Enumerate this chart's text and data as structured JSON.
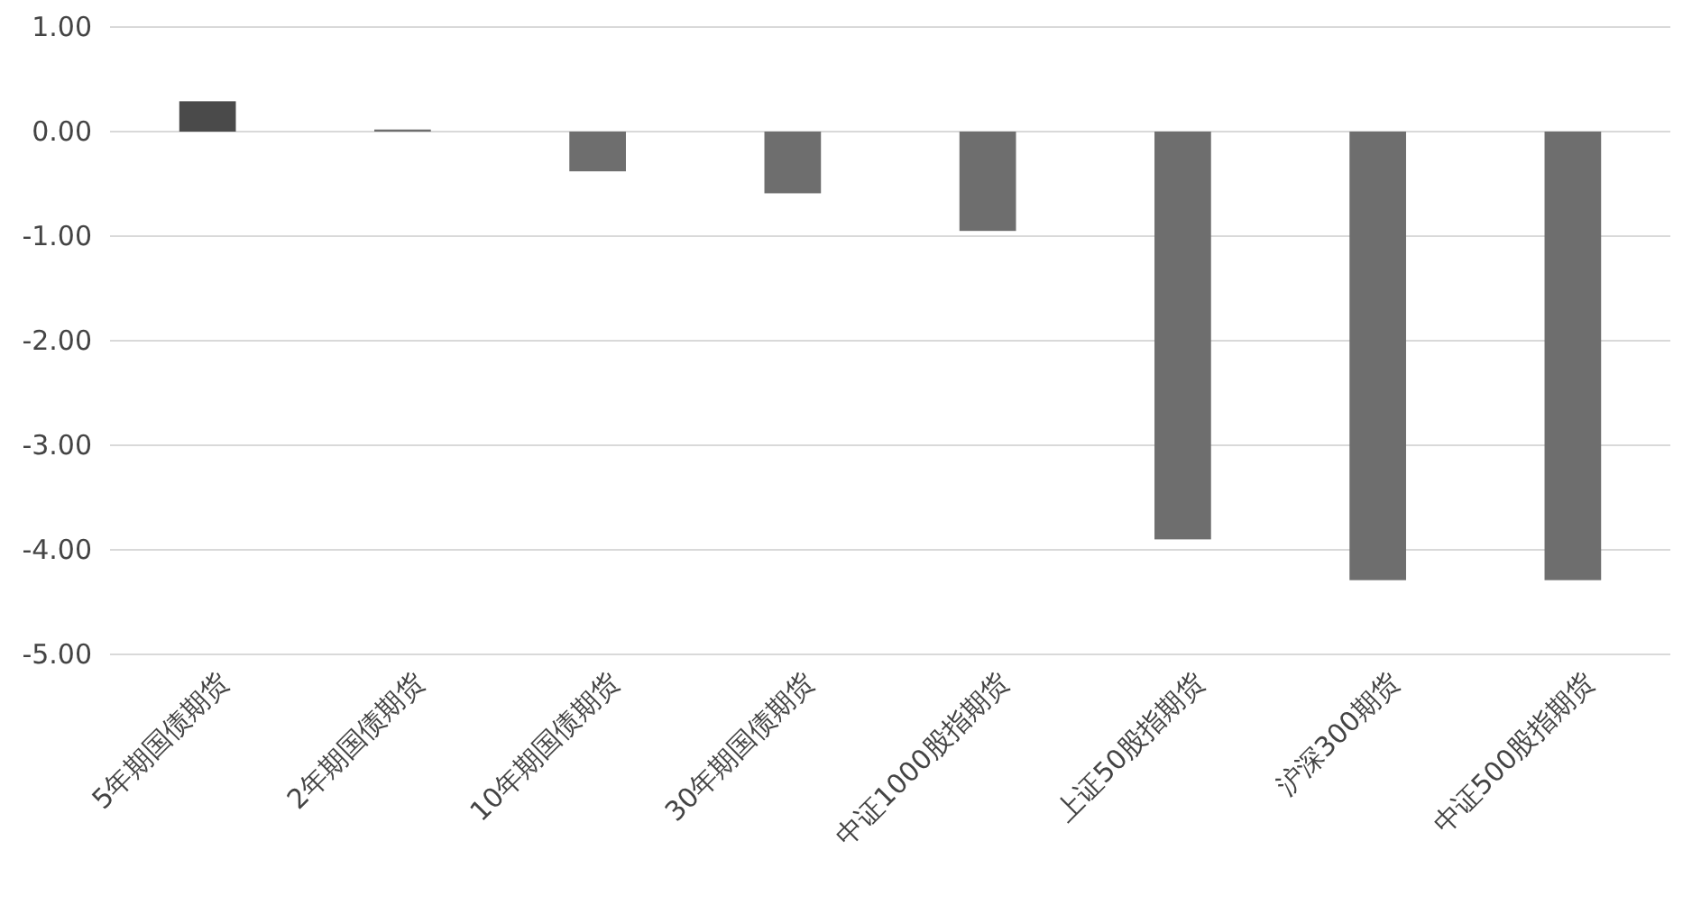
{
  "chart_data": {
    "type": "bar",
    "categories": [
      "5年期国债期货",
      "2年期国债期货",
      "10年期国债期货",
      "30年期国债期货",
      "中证1000股指期货",
      "上证50股指期货",
      "沪深300期货",
      "中证500股指期货"
    ],
    "values": [
      0.29,
      0.02,
      -0.38,
      -0.59,
      -0.95,
      -3.9,
      -4.29,
      -4.29
    ],
    "colors": [
      "#4a4a4a",
      "#6e6e6e",
      "#6e6e6e",
      "#6e6e6e",
      "#6e6e6e",
      "#6e6e6e",
      "#6e6e6e",
      "#6e6e6e"
    ],
    "ylim": [
      -5,
      1
    ],
    "yticks": [
      {
        "value": -5,
        "label": "-5.00"
      },
      {
        "value": -4,
        "label": "-4.00"
      },
      {
        "value": -3,
        "label": "-3.00"
      },
      {
        "value": -2,
        "label": "-2.00"
      },
      {
        "value": -1,
        "label": "-1.00"
      },
      {
        "value": 0,
        "label": "0.00"
      },
      {
        "value": 1,
        "label": "1.00"
      }
    ],
    "grid": "y"
  }
}
